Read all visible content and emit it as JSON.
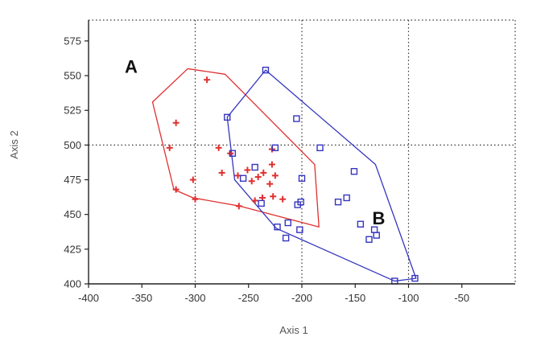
{
  "chart_data": {
    "type": "scatter",
    "title": "",
    "xlabel": "Axis 1",
    "ylabel": "Axis 2",
    "xlim": [
      -400,
      0
    ],
    "ylim": [
      400,
      590
    ],
    "x_ticks": [
      -400,
      -350,
      -300,
      -250,
      -200,
      -150,
      -100,
      -50
    ],
    "y_ticks": [
      400,
      425,
      450,
      475,
      500,
      525,
      550,
      575
    ],
    "x_tick_labels": [
      "-400",
      "-350",
      "-300",
      "-250",
      "-200",
      "-150",
      "-100",
      "-50"
    ],
    "y_tick_labels": [
      "400",
      "425",
      "450",
      "475",
      "500",
      "525",
      "550",
      "575"
    ],
    "grid": "dotted",
    "grid_x": [
      -300,
      -200,
      -100
    ],
    "grid_y": [
      500
    ],
    "annotations": [
      {
        "text": "A",
        "x": -360,
        "y": 552,
        "group": "A"
      },
      {
        "text": "B",
        "x": -128,
        "y": 443,
        "group": "B"
      }
    ],
    "series": [
      {
        "group": "A",
        "marker": "plus",
        "color": "#e03030",
        "points": [
          [
            -318,
            516
          ],
          [
            -324,
            498
          ],
          [
            -302,
            475
          ],
          [
            -318,
            468
          ],
          [
            -278,
            498
          ],
          [
            -267,
            494
          ],
          [
            -260,
            478
          ],
          [
            -251,
            482
          ],
          [
            -247,
            474
          ],
          [
            -241,
            477
          ],
          [
            -236,
            480
          ],
          [
            -228,
            486
          ],
          [
            -225,
            478
          ],
          [
            -230,
            472
          ],
          [
            -237,
            462
          ],
          [
            -227,
            463
          ],
          [
            -244,
            460
          ],
          [
            -218,
            461
          ],
          [
            -228,
            497
          ],
          [
            -275,
            480
          ],
          [
            -259,
            456
          ],
          [
            -289,
            547
          ],
          [
            -300,
            461
          ]
        ],
        "hull": [
          [
            -340,
            531
          ],
          [
            -307,
            555
          ],
          [
            -272,
            551
          ],
          [
            -188,
            486
          ],
          [
            -184,
            441
          ],
          [
            -258,
            456
          ],
          [
            -302,
            462
          ],
          [
            -320,
            468
          ]
        ]
      },
      {
        "group": "B",
        "marker": "square",
        "color": "#3535c0",
        "points": [
          [
            -234,
            554
          ],
          [
            -270,
            520
          ],
          [
            -205,
            519
          ],
          [
            -183,
            498
          ],
          [
            -265,
            494
          ],
          [
            -225,
            498
          ],
          [
            -151,
            481
          ],
          [
            -244,
            484
          ],
          [
            -255,
            476
          ],
          [
            -200,
            476
          ],
          [
            -238,
            458
          ],
          [
            -201,
            459
          ],
          [
            -204,
            457
          ],
          [
            -166,
            459
          ],
          [
            -158,
            462
          ],
          [
            -145,
            443
          ],
          [
            -132,
            439
          ],
          [
            -137,
            432
          ],
          [
            -130,
            435
          ],
          [
            -213,
            444
          ],
          [
            -223,
            441
          ],
          [
            -202,
            439
          ],
          [
            -215,
            433
          ],
          [
            -113,
            402
          ],
          [
            -94,
            404
          ]
        ],
        "hull": [
          [
            -234,
            554
          ],
          [
            -131,
            486
          ],
          [
            -93,
            404
          ],
          [
            -113,
            402
          ],
          [
            -224,
            440
          ],
          [
            -263,
            475
          ],
          [
            -270,
            520
          ]
        ]
      }
    ]
  }
}
